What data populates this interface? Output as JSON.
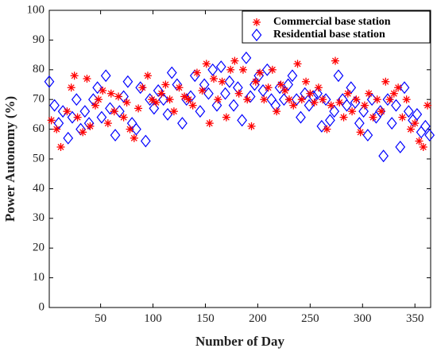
{
  "chart_data": {
    "type": "scatter",
    "xlabel": "Number of Day",
    "ylabel": "Power Autonomy (%)",
    "xlim": [
      1,
      365
    ],
    "ylim": [
      0,
      100
    ],
    "xticks": [
      50,
      100,
      150,
      200,
      250,
      300,
      350
    ],
    "yticks": [
      0,
      10,
      20,
      30,
      40,
      50,
      60,
      70,
      80,
      90,
      100
    ],
    "legend_position": "top-right",
    "grid": false,
    "series": [
      {
        "name": "Commercial base station",
        "marker": "asterisk",
        "color": "#ff0000",
        "x": [
          3,
          8,
          12,
          18,
          22,
          25,
          28,
          33,
          37,
          40,
          45,
          48,
          52,
          57,
          60,
          63,
          67,
          72,
          75,
          78,
          82,
          86,
          90,
          95,
          99,
          103,
          108,
          112,
          116,
          120,
          125,
          130,
          134,
          138,
          142,
          147,
          151,
          154,
          158,
          162,
          166,
          170,
          174,
          178,
          182,
          186,
          190,
          194,
          198,
          202,
          206,
          210,
          214,
          218,
          222,
          226,
          230,
          234,
          238,
          242,
          246,
          250,
          254,
          258,
          262,
          266,
          270,
          274,
          278,
          282,
          286,
          290,
          294,
          298,
          302,
          306,
          310,
          314,
          318,
          322,
          326,
          330,
          334,
          338,
          342,
          346,
          350,
          354,
          358,
          362
        ],
        "y": [
          63,
          60,
          54,
          66,
          74,
          78,
          64,
          59,
          77,
          61,
          68,
          70,
          73,
          62,
          72,
          66,
          71,
          64,
          69,
          60,
          57,
          67,
          74,
          78,
          70,
          69,
          72,
          75,
          70,
          66,
          74,
          71,
          70,
          68,
          79,
          73,
          82,
          62,
          77,
          70,
          76,
          64,
          80,
          83,
          72,
          80,
          70,
          61,
          76,
          79,
          70,
          74,
          80,
          66,
          75,
          73,
          70,
          68,
          82,
          70,
          76,
          72,
          69,
          74,
          70,
          60,
          68,
          83,
          69,
          64,
          72,
          66,
          70,
          59,
          68,
          72,
          64,
          70,
          66,
          76,
          70,
          72,
          74,
          64,
          70,
          60,
          62,
          56,
          54,
          68
        ]
      },
      {
        "name": "Residential base station",
        "marker": "diamond",
        "color": "#0000ff",
        "x": [
          1,
          6,
          10,
          14,
          19,
          23,
          27,
          31,
          35,
          39,
          43,
          47,
          51,
          55,
          59,
          64,
          68,
          72,
          76,
          80,
          84,
          88,
          93,
          97,
          101,
          105,
          110,
          114,
          118,
          123,
          128,
          132,
          136,
          140,
          145,
          149,
          153,
          157,
          161,
          165,
          169,
          173,
          177,
          181,
          185,
          189,
          193,
          197,
          201,
          205,
          209,
          213,
          217,
          221,
          225,
          229,
          233,
          237,
          241,
          245,
          249,
          253,
          257,
          261,
          265,
          269,
          273,
          277,
          281,
          285,
          289,
          293,
          297,
          301,
          305,
          309,
          313,
          317,
          320,
          324,
          328,
          332,
          336,
          340,
          344,
          348,
          352,
          356,
          360,
          364
        ],
        "y": [
          76,
          68,
          62,
          66,
          57,
          64,
          70,
          60,
          66,
          62,
          70,
          74,
          64,
          78,
          67,
          58,
          66,
          71,
          76,
          62,
          60,
          74,
          56,
          70,
          67,
          73,
          70,
          65,
          79,
          75,
          62,
          70,
          71,
          78,
          66,
          75,
          72,
          80,
          68,
          81,
          72,
          76,
          68,
          74,
          63,
          84,
          71,
          75,
          78,
          73,
          80,
          70,
          68,
          74,
          70,
          75,
          78,
          70,
          64,
          72,
          68,
          71,
          72,
          61,
          70,
          63,
          66,
          78,
          70,
          68,
          74,
          69,
          62,
          66,
          58,
          70,
          64,
          66,
          51,
          70,
          62,
          68,
          54,
          74,
          66,
          63,
          65,
          59,
          61,
          58
        ]
      }
    ]
  }
}
